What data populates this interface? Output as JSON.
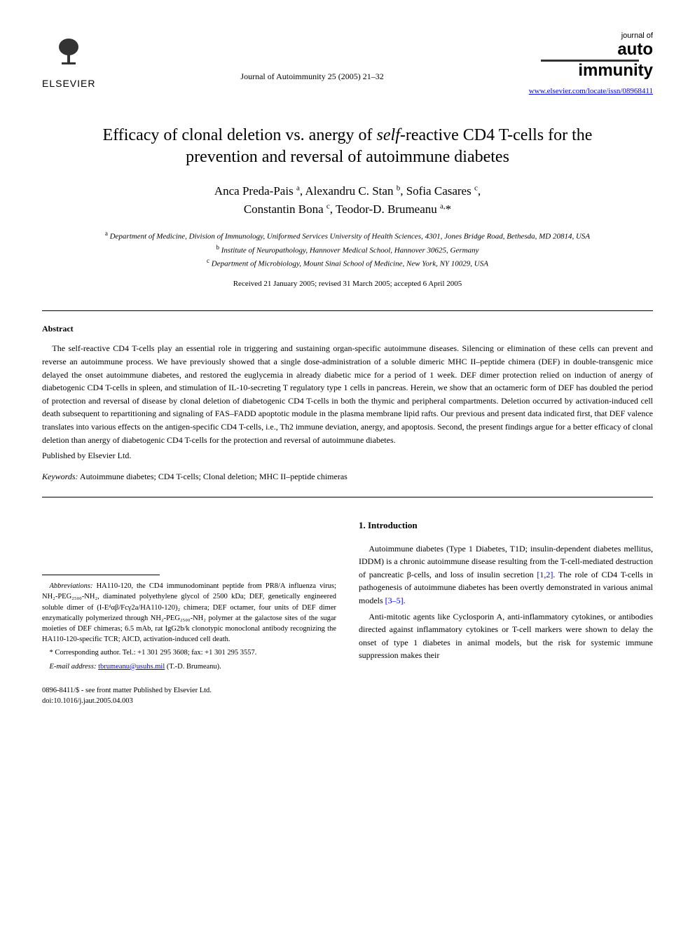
{
  "header": {
    "publisher_name": "ELSEVIER",
    "journal_citation": "Journal of Autoimmunity 25 (2005) 21–32",
    "journal_logo_prefix": "journal of",
    "journal_logo_line1": "auto",
    "journal_logo_line2": "immunity",
    "journal_url": "www.elsevier.com/locate/issn/08968411"
  },
  "title": {
    "pre": "Efficacy of clonal deletion vs. anergy of ",
    "italic": "self",
    "post": "-reactive CD4 T-cells for the prevention and reversal of autoimmune diabetes"
  },
  "authors_html": "Anca Preda-Pais <sup>a</sup>, Alexandru C. Stan <sup>b</sup>, Sofia Casares <sup>c</sup>,<br>Constantin Bona <sup>c</sup>, Teodor-D. Brumeanu <sup>a,</sup>*",
  "affiliations": [
    {
      "sup": "a",
      "text": "Department of Medicine, Division of Immunology, Uniformed Services University of Health Sciences, 4301, Jones Bridge Road, Bethesda, MD 20814, USA"
    },
    {
      "sup": "b",
      "text": "Institute of Neuropathology, Hannover Medical School, Hannover 30625, Germany"
    },
    {
      "sup": "c",
      "text": "Department of Microbiology, Mount Sinai School of Medicine, New York, NY 10029, USA"
    }
  ],
  "dates": "Received 21 January 2005; revised 31 March 2005; accepted 6 April 2005",
  "abstract": {
    "heading": "Abstract",
    "body": "The self-reactive CD4 T-cells play an essential role in triggering and sustaining organ-specific autoimmune diseases. Silencing or elimination of these cells can prevent and reverse an autoimmune process. We have previously showed that a single dose-administration of a soluble dimeric MHC II–peptide chimera (DEF) in double-transgenic mice delayed the onset autoimmune diabetes, and restored the euglycemia in already diabetic mice for a period of 1 week. DEF dimer protection relied on induction of anergy of diabetogenic CD4 T-cells in spleen, and stimulation of IL-10-secreting T regulatory type 1 cells in pancreas. Herein, we show that an octameric form of DEF has doubled the period of protection and reversal of disease by clonal deletion of diabetogenic CD4 T-cells in both the thymic and peripheral compartments. Deletion occurred by activation-induced cell death subsequent to repartitioning and signaling of FAS–FADD apoptotic module in the plasma membrane lipid rafts. Our previous and present data indicated first, that DEF valence translates into various effects on the antigen-specific CD4 T-cells, i.e., Th2 immune deviation, anergy, and apoptosis. Second, the present findings argue for a better efficacy of clonal deletion than anergy of diabetogenic CD4 T-cells for the protection and reversal of autoimmune diabetes.",
    "published": "Published by Elsevier Ltd."
  },
  "keywords": {
    "label": "Keywords:",
    "text": " Autoimmune diabetes; CD4 T-cells; Clonal deletion; MHC II–peptide chimeras"
  },
  "footnotes": {
    "abbrev_label": "Abbreviations:",
    "abbrev_text": " HA110-120, the CD4 immunodominant peptide from PR8/A influenza virus; NH₂-PEG₂₅₀₀-NH₂, diaminated polyethylene glycol of 2500 kDa; DEF, genetically engineered soluble dimer of (I-Eᵈαβ/Fcγ2a/HA110-120)₂ chimera; DEF octamer, four units of DEF dimer enzymatically polymerized through NH₂-PEG₂₅₀₀-NH₂ polymer at the galactose sites of the sugar moieties of DEF chimeras; 6.5 mAb, rat IgG2b/k clonotypic monoclonal antibody recognizing the HA110-120-specific TCR; AICD, activation-induced cell death.",
    "corresponding": "* Corresponding author. Tel.: +1 301 295 3608; fax: +1 301 295 3557.",
    "email_label": "E-mail address:",
    "email": "tbrumeanu@usuhs.mil",
    "email_person": " (T.-D. Brumeanu)."
  },
  "introduction": {
    "heading": "1. Introduction",
    "para1_pre": "Autoimmune diabetes (Type 1 Diabetes, T1D; insulin-dependent diabetes mellitus, IDDM) is a chronic autoimmune disease resulting from the T-cell-mediated destruction of pancreatic β-cells, and loss of insulin secretion ",
    "para1_ref1": "[1,2]",
    "para1_mid": ". The role of CD4 T-cells in pathogenesis of autoimmune diabetes has been overtly demonstrated in various animal models ",
    "para1_ref2": "[3–5]",
    "para1_post": ".",
    "para2": "Anti-mitotic agents like Cyclosporin A, anti-inflammatory cytokines, or antibodies directed against inflammatory cytokines or T-cell markers were shown to delay the onset of type 1 diabetes in animal models, but the risk for systemic immune suppression makes their"
  },
  "footer": {
    "copyright": "0896-8411/$ - see front matter Published by Elsevier Ltd.",
    "doi": "doi:10.1016/j.jaut.2005.04.003"
  },
  "colors": {
    "text": "#000000",
    "link": "#0000ee",
    "background": "#ffffff"
  },
  "typography": {
    "body_font": "Georgia, 'Times New Roman', serif",
    "title_fontsize": 24,
    "author_fontsize": 17,
    "body_fontsize": 12,
    "footnote_fontsize": 10.5
  }
}
